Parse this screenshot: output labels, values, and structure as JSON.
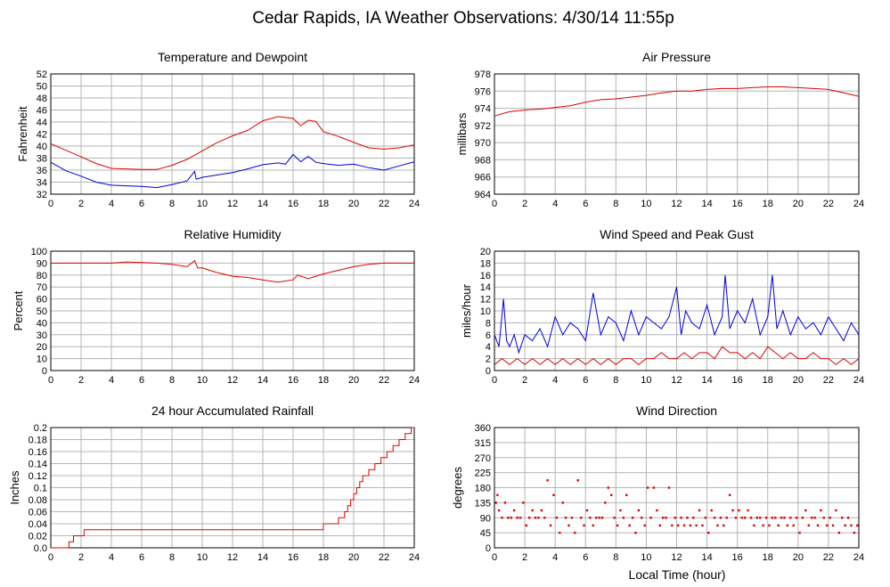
{
  "title": "Cedar Rapids, IA Weather Observations: 4/30/14 11:55p",
  "xlabel": "Local Time (hour)",
  "colors": {
    "red": "#dd0000",
    "blue": "#0000dd",
    "grid": "#b4b4b4"
  },
  "chart_data": [
    {
      "id": "temp",
      "type": "line",
      "title": "Temperature and Dewpoint",
      "ylabel": "Fahrenheit",
      "xlim": [
        0,
        24
      ],
      "ylim": [
        32,
        52
      ],
      "xticks": [
        0,
        2,
        4,
        6,
        8,
        10,
        12,
        14,
        16,
        18,
        20,
        22,
        24
      ],
      "yticks": [
        32,
        34,
        36,
        38,
        40,
        42,
        44,
        46,
        48,
        50,
        52
      ],
      "grid": true,
      "series": [
        {
          "color": "#dd0000",
          "x": [
            0,
            1,
            2,
            3,
            4,
            5,
            6,
            7,
            8,
            9,
            10,
            11,
            12,
            13,
            14,
            15,
            16,
            16.5,
            17,
            17.5,
            18,
            19,
            20,
            21,
            22,
            23,
            24
          ],
          "y": [
            40.4,
            39.3,
            38.2,
            37.1,
            36.3,
            36.2,
            36.1,
            36.1,
            36.8,
            37.8,
            39.2,
            40.6,
            41.7,
            42.6,
            44.2,
            44.9,
            44.6,
            43.4,
            44.3,
            44.1,
            42.4,
            41.6,
            40.6,
            39.7,
            39.5,
            39.7,
            40.2
          ]
        },
        {
          "color": "#0000dd",
          "x": [
            0,
            1,
            2,
            3,
            4,
            5,
            6,
            7,
            8,
            9,
            9.5,
            9.6,
            10,
            11,
            12,
            13,
            14,
            15,
            15.5,
            16,
            16.5,
            17,
            17.5,
            18,
            19,
            20,
            21,
            22,
            23,
            24
          ],
          "y": [
            37.3,
            35.9,
            35.0,
            34.0,
            33.5,
            33.4,
            33.3,
            33.1,
            33.6,
            34.2,
            35.8,
            34.5,
            34.8,
            35.2,
            35.6,
            36.2,
            36.9,
            37.2,
            37.0,
            38.6,
            37.4,
            38.3,
            37.3,
            37.1,
            36.8,
            37.0,
            36.4,
            36.0,
            36.7,
            37.4
          ]
        }
      ]
    },
    {
      "id": "pressure",
      "type": "line",
      "title": "Air Pressure",
      "ylabel": "millibars",
      "xlim": [
        0,
        24
      ],
      "ylim": [
        964,
        978
      ],
      "xticks": [
        0,
        2,
        4,
        6,
        8,
        10,
        12,
        14,
        16,
        18,
        20,
        22,
        24
      ],
      "yticks": [
        964,
        966,
        968,
        970,
        972,
        974,
        976,
        978
      ],
      "grid": true,
      "series": [
        {
          "color": "#dd0000",
          "x": [
            0,
            1,
            2,
            3,
            4,
            5,
            6,
            7,
            8,
            9,
            10,
            11,
            12,
            13,
            14,
            15,
            16,
            17,
            18,
            19,
            20,
            21,
            22,
            23,
            24
          ],
          "y": [
            973.1,
            973.6,
            973.8,
            973.9,
            974.1,
            974.3,
            974.7,
            975.0,
            975.1,
            975.3,
            975.5,
            975.8,
            976.0,
            976.0,
            976.2,
            976.3,
            976.3,
            976.4,
            976.5,
            976.5,
            976.4,
            976.3,
            976.2,
            975.8,
            975.4
          ]
        }
      ]
    },
    {
      "id": "rh",
      "type": "line",
      "title": "Relative Humidity",
      "ylabel": "Percent",
      "xlim": [
        0,
        24
      ],
      "ylim": [
        0,
        100
      ],
      "xticks": [
        0,
        2,
        4,
        6,
        8,
        10,
        12,
        14,
        16,
        18,
        20,
        22,
        24
      ],
      "yticks": [
        0,
        10,
        20,
        30,
        40,
        50,
        60,
        70,
        80,
        90,
        100
      ],
      "grid": true,
      "series": [
        {
          "color": "#dd0000",
          "x": [
            0,
            2,
            4,
            5,
            6,
            7,
            8,
            9,
            9.5,
            9.7,
            10,
            11,
            12,
            13,
            14,
            15,
            16,
            16.3,
            17,
            17.5,
            18,
            19,
            20,
            21,
            22,
            23,
            24
          ],
          "y": [
            90,
            90,
            90,
            91,
            90.5,
            90,
            89,
            87,
            92,
            86,
            86,
            82,
            79,
            78,
            76,
            74,
            76,
            80,
            77,
            79,
            81,
            84,
            87,
            89,
            90,
            90,
            90
          ]
        }
      ]
    },
    {
      "id": "wind",
      "type": "line",
      "title": "Wind Speed and Peak Gust",
      "ylabel": "miles/hour",
      "xlim": [
        0,
        24
      ],
      "ylim": [
        0,
        20
      ],
      "xticks": [
        0,
        2,
        4,
        6,
        8,
        10,
        12,
        14,
        16,
        18,
        20,
        22,
        24
      ],
      "yticks": [
        0,
        2,
        4,
        6,
        8,
        10,
        12,
        14,
        16,
        18,
        20
      ],
      "grid": true,
      "series": [
        {
          "color": "#0000dd",
          "x": [
            0,
            0.3,
            0.6,
            0.8,
            1,
            1.3,
            1.6,
            2,
            2.5,
            3,
            3.5,
            4,
            4.5,
            5,
            5.5,
            6,
            6.5,
            7,
            7.5,
            8,
            8.5,
            9,
            9.5,
            10,
            10.5,
            11,
            11.5,
            12,
            12.3,
            12.6,
            13,
            13.5,
            14,
            14.5,
            15,
            15.2,
            15.5,
            16,
            16.5,
            17,
            17.5,
            18,
            18.3,
            18.6,
            19,
            19.5,
            20,
            20.5,
            21,
            21.5,
            22,
            22.5,
            23,
            23.5,
            24
          ],
          "y": [
            6,
            4,
            12,
            5,
            4,
            6,
            3,
            6,
            5,
            7,
            4,
            9,
            6,
            8,
            7,
            5,
            13,
            6,
            9,
            8,
            5,
            10,
            6,
            9,
            8,
            7,
            9,
            14,
            6,
            10,
            8,
            7,
            11,
            6,
            9,
            16,
            7,
            10,
            8,
            12,
            6,
            9,
            16,
            7,
            10,
            6,
            9,
            7,
            8,
            6,
            9,
            7,
            5,
            8,
            6
          ]
        },
        {
          "color": "#dd0000",
          "x": [
            0,
            0.5,
            1,
            1.5,
            2,
            2.5,
            3,
            3.5,
            4,
            4.5,
            5,
            5.5,
            6,
            6.5,
            7,
            7.5,
            8,
            8.5,
            9,
            9.5,
            10,
            10.5,
            11,
            11.5,
            12,
            12.5,
            13,
            13.5,
            14,
            14.5,
            15,
            15.5,
            16,
            16.5,
            17,
            17.5,
            18,
            18.5,
            19,
            19.5,
            20,
            20.5,
            21,
            21.5,
            22,
            22.5,
            23,
            23.5,
            24
          ],
          "y": [
            1,
            2,
            1,
            2,
            1,
            2,
            1,
            2,
            1,
            2,
            1,
            2,
            1,
            2,
            1,
            2,
            1,
            2,
            2,
            1,
            2,
            2,
            3,
            2,
            2,
            3,
            2,
            3,
            3,
            2,
            4,
            3,
            3,
            2,
            3,
            2,
            4,
            3,
            2,
            3,
            2,
            2,
            3,
            2,
            2,
            1,
            2,
            1,
            2
          ]
        }
      ]
    },
    {
      "id": "rain",
      "type": "line",
      "title": "24 hour Accumulated Rainfall",
      "ylabel": "Inches",
      "xlim": [
        0,
        24
      ],
      "ylim": [
        0,
        0.2
      ],
      "xticks": [
        0,
        2,
        4,
        6,
        8,
        10,
        12,
        14,
        16,
        18,
        20,
        22,
        24
      ],
      "yticks": [
        "0.0",
        "0.02",
        "0.04",
        "0.06",
        "0.08",
        "0.1",
        "0.12",
        "0.14",
        "0.16",
        "0.18",
        "0.2"
      ],
      "grid": true,
      "series": [
        {
          "color": "#dd0000",
          "step": true,
          "x": [
            0,
            1.2,
            1.5,
            2.0,
            2.2,
            17.8,
            18.0,
            18.6,
            19.0,
            19.4,
            19.6,
            19.8,
            20.0,
            20.2,
            20.4,
            20.6,
            20.8,
            21.0,
            21.2,
            21.4,
            21.6,
            21.8,
            22.0,
            22.2,
            22.4,
            22.6,
            22.8,
            23.0,
            23.2,
            23.4,
            23.6,
            23.8,
            24.0
          ],
          "y": [
            0.0,
            0.01,
            0.02,
            0.02,
            0.03,
            0.03,
            0.04,
            0.04,
            0.05,
            0.06,
            0.07,
            0.08,
            0.09,
            0.1,
            0.11,
            0.12,
            0.12,
            0.13,
            0.13,
            0.14,
            0.14,
            0.15,
            0.15,
            0.16,
            0.16,
            0.17,
            0.17,
            0.18,
            0.18,
            0.19,
            0.19,
            0.2,
            0.2
          ]
        }
      ]
    },
    {
      "id": "dir",
      "type": "scatter",
      "title": "Wind Direction",
      "ylabel": "degrees",
      "xlim": [
        0,
        24
      ],
      "ylim": [
        0,
        360
      ],
      "xticks": [
        0,
        2,
        4,
        6,
        8,
        10,
        12,
        14,
        16,
        18,
        20,
        22,
        24
      ],
      "yticks": [
        0,
        45,
        90,
        135,
        180,
        225,
        270,
        315,
        360
      ],
      "grid": true,
      "series": [
        {
          "color": "#dd0000",
          "x": [
            0.1,
            0.2,
            0.3,
            0.5,
            0.7,
            0.9,
            1.1,
            1.3,
            1.5,
            1.7,
            1.9,
            2.1,
            2.3,
            2.5,
            2.7,
            2.9,
            3.1,
            3.3,
            3.5,
            3.7,
            3.9,
            4.1,
            4.3,
            4.5,
            4.7,
            4.9,
            5.1,
            5.3,
            5.5,
            5.7,
            5.9,
            6.1,
            6.3,
            6.5,
            6.7,
            6.9,
            7.1,
            7.3,
            7.5,
            7.7,
            7.9,
            8.1,
            8.3,
            8.5,
            8.7,
            8.9,
            9.1,
            9.3,
            9.5,
            9.7,
            9.9,
            10.1,
            10.3,
            10.5,
            10.7,
            10.9,
            11.1,
            11.3,
            11.5,
            11.7,
            11.9,
            12.1,
            12.3,
            12.5,
            12.7,
            12.9,
            13.1,
            13.3,
            13.5,
            13.7,
            13.9,
            14.1,
            14.3,
            14.5,
            14.7,
            14.9,
            15.1,
            15.3,
            15.5,
            15.7,
            15.9,
            16.1,
            16.3,
            16.5,
            16.7,
            16.9,
            17.1,
            17.3,
            17.5,
            17.7,
            17.9,
            18.1,
            18.3,
            18.5,
            18.7,
            18.9,
            19.1,
            19.3,
            19.5,
            19.7,
            19.9,
            20.1,
            20.3,
            20.5,
            20.7,
            20.9,
            21.1,
            21.3,
            21.5,
            21.7,
            21.9,
            22.1,
            22.3,
            22.5,
            22.7,
            22.9,
            23.1,
            23.3,
            23.5,
            23.7,
            23.9
          ],
          "y": [
            135,
            158,
            112,
            90,
            135,
            90,
            90,
            112,
            90,
            90,
            135,
            67,
            90,
            112,
            90,
            90,
            112,
            90,
            202,
            67,
            158,
            90,
            45,
            135,
            90,
            67,
            90,
            45,
            202,
            90,
            67,
            112,
            90,
            67,
            90,
            90,
            90,
            135,
            180,
            158,
            90,
            67,
            112,
            90,
            158,
            67,
            90,
            45,
            112,
            90,
            67,
            180,
            90,
            180,
            112,
            67,
            90,
            90,
            180,
            67,
            90,
            67,
            90,
            67,
            90,
            67,
            90,
            67,
            112,
            67,
            90,
            45,
            112,
            90,
            67,
            90,
            67,
            90,
            158,
            112,
            90,
            112,
            90,
            90,
            112,
            90,
            67,
            90,
            90,
            67,
            90,
            67,
            90,
            90,
            67,
            90,
            90,
            67,
            90,
            67,
            90,
            45,
            90,
            112,
            67,
            90,
            90,
            67,
            112,
            90,
            67,
            90,
            67,
            112,
            45,
            90,
            67,
            90,
            67,
            45,
            67
          ]
        }
      ]
    }
  ]
}
